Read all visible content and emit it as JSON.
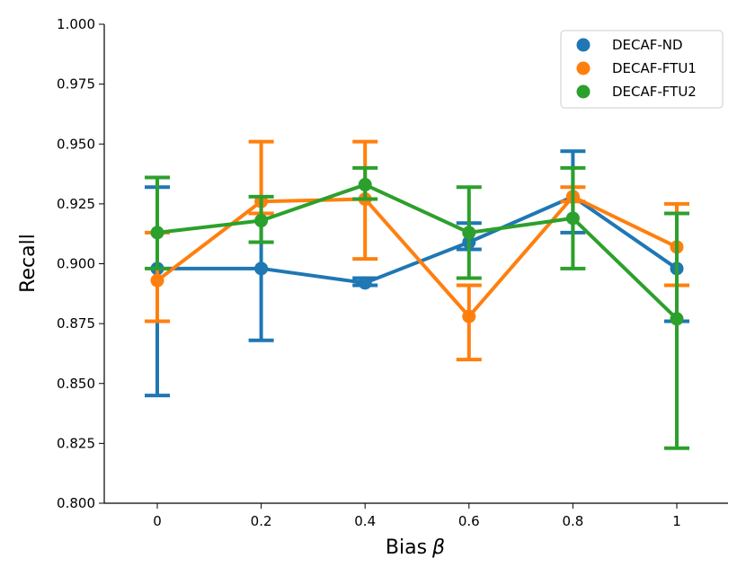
{
  "chart_data": {
    "type": "line",
    "xlabel": "Bias",
    "xlabel_symbol": "β",
    "ylabel": "Recall",
    "categories": [
      "0",
      "0.2",
      "0.4",
      "0.6",
      "0.8",
      "1"
    ],
    "ylim": [
      0.8,
      1.0
    ],
    "yticks": [
      0.8,
      0.825,
      0.85,
      0.875,
      0.9,
      0.925,
      0.95,
      0.975,
      1.0
    ],
    "ytick_labels": [
      "0.800",
      "0.825",
      "0.850",
      "0.875",
      "0.900",
      "0.925",
      "0.950",
      "0.975",
      "1.000"
    ],
    "grid": false,
    "legend_position": "top-right",
    "series": [
      {
        "name": "DECAF-ND",
        "color": "#1f77b4",
        "values": [
          0.898,
          0.898,
          0.892,
          0.909,
          0.928,
          0.898
        ],
        "err_low": [
          0.845,
          0.868,
          0.891,
          0.906,
          0.913,
          0.876
        ],
        "err_high": [
          0.932,
          0.921,
          0.894,
          0.917,
          0.947,
          0.921
        ]
      },
      {
        "name": "DECAF-FTU1",
        "color": "#ff7f0e",
        "values": [
          0.893,
          0.926,
          0.927,
          0.878,
          0.928,
          0.907
        ],
        "err_low": [
          0.876,
          0.921,
          0.902,
          0.86,
          0.926,
          0.891
        ],
        "err_high": [
          0.913,
          0.951,
          0.951,
          0.891,
          0.932,
          0.925
        ]
      },
      {
        "name": "DECAF-FTU2",
        "color": "#2ca02c",
        "values": [
          0.913,
          0.918,
          0.933,
          0.913,
          0.919,
          0.877
        ],
        "err_low": [
          0.898,
          0.909,
          0.927,
          0.894,
          0.898,
          0.823
        ],
        "err_high": [
          0.936,
          0.928,
          0.94,
          0.932,
          0.94,
          0.921
        ]
      }
    ]
  }
}
